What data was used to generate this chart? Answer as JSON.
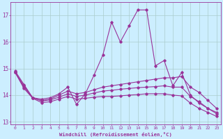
{
  "xlabel": "Windchill (Refroidissement éolien,°C)",
  "background_color": "#cceeff",
  "grid_color": "#aacccc",
  "line_color": "#993399",
  "hours": [
    0,
    1,
    2,
    3,
    4,
    5,
    6,
    7,
    8,
    9,
    10,
    11,
    12,
    13,
    14,
    15,
    16,
    17,
    18,
    19,
    20,
    21,
    22,
    23
  ],
  "series_spike": [
    14.9,
    14.4,
    13.9,
    13.85,
    13.9,
    14.05,
    14.3,
    13.65,
    14.05,
    14.75,
    15.5,
    16.75,
    16.0,
    16.6,
    17.2,
    17.2,
    15.1,
    15.3,
    14.35,
    14.85,
    14.0,
    13.7,
    13.5,
    13.35
  ],
  "series_flat1": [
    14.85,
    14.35,
    13.9,
    13.8,
    13.85,
    14.0,
    14.15,
    14.05,
    14.1,
    14.2,
    14.3,
    14.35,
    14.4,
    14.45,
    14.5,
    14.55,
    14.6,
    14.65,
    14.65,
    14.7,
    14.3,
    14.1,
    13.8,
    13.5
  ],
  "series_flat2": [
    14.85,
    14.3,
    13.9,
    13.78,
    13.82,
    13.92,
    14.05,
    13.95,
    14.0,
    14.08,
    14.15,
    14.18,
    14.22,
    14.25,
    14.28,
    14.3,
    14.32,
    14.35,
    14.3,
    14.3,
    13.95,
    13.75,
    13.5,
    13.3
  ],
  "series_flat3": [
    14.85,
    14.25,
    13.88,
    13.72,
    13.75,
    13.85,
    13.95,
    13.85,
    13.88,
    13.92,
    13.95,
    13.95,
    13.97,
    14.0,
    14.02,
    14.05,
    14.05,
    14.05,
    14.0,
    13.97,
    13.7,
    13.5,
    13.35,
    13.2
  ],
  "ylim": [
    12.9,
    17.5
  ],
  "yticks": [
    13,
    14,
    15,
    16,
    17
  ],
  "xticks": [
    0,
    1,
    2,
    3,
    4,
    5,
    6,
    7,
    8,
    9,
    10,
    11,
    12,
    13,
    14,
    15,
    16,
    17,
    18,
    19,
    20,
    21,
    22,
    23
  ]
}
